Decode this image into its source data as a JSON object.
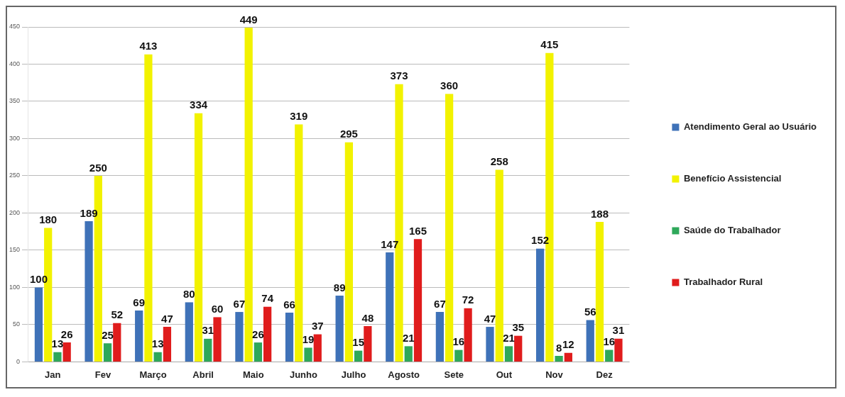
{
  "chart_data": {
    "type": "bar",
    "categories": [
      "Jan",
      "Fev",
      "Março",
      "Abril",
      "Maio",
      "Junho",
      "Julho",
      "Agosto",
      "Sete",
      "Out",
      "Nov",
      "Dez"
    ],
    "series": [
      {
        "name": "Atendimento Geral ao Usuário",
        "color": "#3f72b8",
        "values": [
          100,
          189,
          69,
          80,
          67,
          66,
          89,
          147,
          67,
          47,
          152,
          56
        ]
      },
      {
        "name": "Benefício Assistencial",
        "color": "#f2f200",
        "values": [
          180,
          250,
          413,
          334,
          449,
          319,
          295,
          373,
          360,
          258,
          415,
          188
        ]
      },
      {
        "name": "Saúde do Trabalhador",
        "color": "#2ea85a",
        "values": [
          13,
          25,
          13,
          31,
          26,
          19,
          15,
          21,
          16,
          21,
          8,
          16
        ]
      },
      {
        "name": "Trabalhador Rural",
        "color": "#e01c1c",
        "values": [
          26,
          52,
          47,
          60,
          74,
          37,
          48,
          165,
          72,
          35,
          12,
          31
        ]
      }
    ],
    "ylim": [
      0,
      450
    ],
    "yticks": [
      0,
      50,
      100,
      150,
      200,
      250,
      300,
      350,
      400,
      450
    ],
    "grid": "y",
    "legend": "right",
    "data_labels": true
  }
}
